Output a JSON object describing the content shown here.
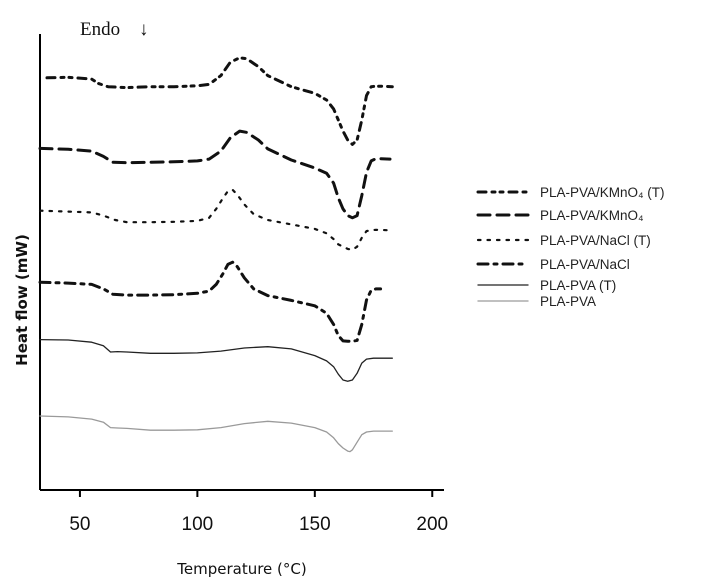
{
  "chart_data": {
    "type": "line",
    "xlabel": "Temperature (°C)",
    "ylabel": "Heat flow (mW)",
    "xlim": [
      33,
      205
    ],
    "xticks": [
      50,
      100,
      150,
      200
    ],
    "endo_label": "Endo",
    "endo_arrow": "↓",
    "grid": false,
    "legend_position": "right",
    "series": [
      {
        "name": "PLA-PVA/KMnO₄ (T)",
        "style": "dash-dot-dot",
        "color": "#111111",
        "x": [
          36,
          45,
          55,
          58,
          62,
          70,
          80,
          90,
          100,
          105,
          110,
          114,
          118,
          121,
          126,
          130,
          140,
          150,
          155,
          158,
          160,
          162,
          164,
          166,
          168,
          170,
          172,
          174,
          176,
          178,
          183
        ],
        "y": [
          6.75,
          6.76,
          6.72,
          6.62,
          6.55,
          6.53,
          6.55,
          6.55,
          6.57,
          6.6,
          6.8,
          7.1,
          7.2,
          7.18,
          7.0,
          6.8,
          6.55,
          6.4,
          6.25,
          6.05,
          5.8,
          5.55,
          5.35,
          5.25,
          5.35,
          5.8,
          6.35,
          6.55,
          6.56,
          6.56,
          6.55
        ]
      },
      {
        "name": "PLA-PVA/KMnO₄",
        "style": "dash",
        "color": "#111111",
        "x": [
          33,
          45,
          55,
          60,
          64,
          70,
          80,
          90,
          100,
          105,
          110,
          114,
          118,
          121,
          126,
          130,
          140,
          150,
          155,
          158,
          160,
          162,
          164,
          166,
          168,
          170,
          172,
          174,
          176,
          178,
          182
        ],
        "y": [
          5.16,
          5.14,
          5.1,
          4.98,
          4.85,
          4.84,
          4.85,
          4.86,
          4.88,
          4.92,
          5.1,
          5.4,
          5.55,
          5.52,
          5.35,
          5.15,
          4.9,
          4.72,
          4.6,
          4.38,
          4.05,
          3.8,
          3.65,
          3.6,
          3.65,
          4.1,
          4.62,
          4.88,
          4.93,
          4.93,
          4.92
        ]
      },
      {
        "name": "PLA-PVA/NaCl (T)",
        "style": "dot",
        "color": "#111111",
        "x": [
          33,
          45,
          55,
          60,
          65,
          70,
          80,
          90,
          100,
          105,
          108,
          111,
          113,
          115,
          117,
          120,
          124,
          130,
          140,
          150,
          155,
          158,
          160,
          162,
          164,
          166,
          168,
          170,
          172,
          174,
          176,
          181
        ],
        "y": [
          3.76,
          3.74,
          3.72,
          3.65,
          3.55,
          3.5,
          3.5,
          3.51,
          3.53,
          3.6,
          3.8,
          4.05,
          4.2,
          4.23,
          4.12,
          3.9,
          3.68,
          3.55,
          3.45,
          3.35,
          3.25,
          3.12,
          3.0,
          2.95,
          2.9,
          2.88,
          2.95,
          3.15,
          3.3,
          3.32,
          3.33,
          3.32
        ]
      },
      {
        "name": "PLA-PVA/NaCl",
        "style": "dash-dot",
        "color": "#111111",
        "x": [
          33,
          45,
          55,
          60,
          64,
          70,
          80,
          90,
          100,
          105,
          108,
          111,
          113,
          115,
          117,
          120,
          124,
          130,
          140,
          150,
          155,
          158,
          160,
          162,
          164,
          166,
          168,
          170,
          172,
          174,
          176,
          178
        ],
        "y": [
          2.15,
          2.13,
          2.1,
          2.0,
          1.88,
          1.86,
          1.86,
          1.87,
          1.9,
          1.95,
          2.1,
          2.35,
          2.55,
          2.6,
          2.5,
          2.25,
          2.0,
          1.85,
          1.74,
          1.62,
          1.45,
          1.2,
          0.95,
          0.83,
          0.82,
          0.82,
          0.84,
          1.2,
          1.75,
          1.97,
          2.0,
          2.0
        ]
      },
      {
        "name": "PLA-PVA (T)",
        "style": "solid",
        "color": "#222222",
        "x": [
          33,
          45,
          55,
          60,
          63,
          66,
          70,
          80,
          90,
          100,
          110,
          120,
          130,
          140,
          150,
          155,
          158,
          160,
          162,
          164,
          166,
          168,
          170,
          172,
          175,
          183
        ],
        "y": [
          0.86,
          0.85,
          0.8,
          0.72,
          0.58,
          0.59,
          0.58,
          0.55,
          0.55,
          0.56,
          0.6,
          0.67,
          0.7,
          0.65,
          0.5,
          0.38,
          0.25,
          0.08,
          -0.05,
          -0.08,
          -0.05,
          0.1,
          0.33,
          0.42,
          0.44,
          0.44
        ]
      },
      {
        "name": "PLA-PVA",
        "style": "solid",
        "color": "#9a9a9a",
        "x": [
          33,
          45,
          55,
          60,
          63,
          66,
          70,
          80,
          90,
          100,
          110,
          120,
          130,
          140,
          150,
          155,
          158,
          160,
          162,
          164,
          165,
          166,
          168,
          170,
          172,
          175,
          183
        ],
        "y": [
          -0.86,
          -0.88,
          -0.93,
          -1.0,
          -1.12,
          -1.13,
          -1.14,
          -1.18,
          -1.18,
          -1.17,
          -1.12,
          -1.03,
          -0.98,
          -1.02,
          -1.12,
          -1.22,
          -1.35,
          -1.48,
          -1.58,
          -1.65,
          -1.66,
          -1.62,
          -1.45,
          -1.28,
          -1.22,
          -1.2,
          -1.2
        ]
      }
    ]
  }
}
